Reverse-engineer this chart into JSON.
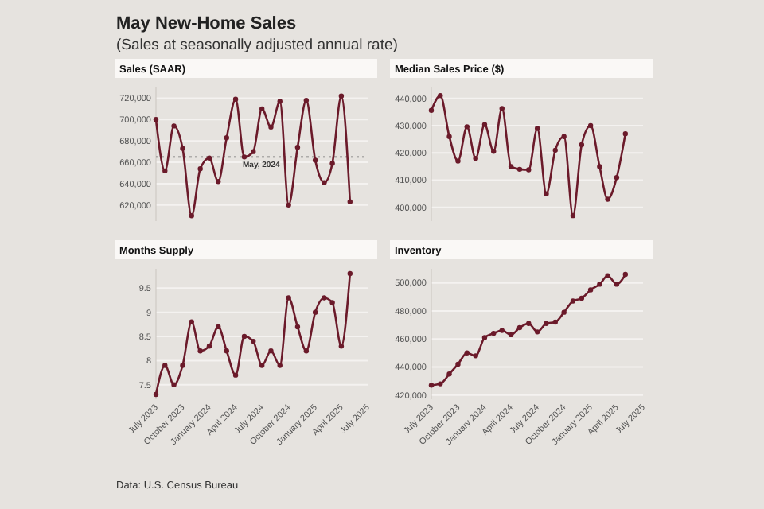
{
  "chart_data": [
    {
      "type": "other",
      "title": "May New-Home Sales",
      "subtitle": "(Sales at seasonally adjusted annual rate)",
      "annotations": [
        "Data: U.S. Census Bureau"
      ]
    },
    {
      "type": "line",
      "title": "Sales (SAAR)",
      "x": [
        "2023-07",
        "2023-08",
        "2023-09",
        "2023-10",
        "2023-11",
        "2023-12",
        "2024-01",
        "2024-02",
        "2024-03",
        "2024-04",
        "2024-05",
        "2024-06",
        "2024-07",
        "2024-08",
        "2024-09",
        "2024-10",
        "2024-11",
        "2024-12",
        "2025-01",
        "2025-02",
        "2025-03",
        "2025-04",
        "2025-05"
      ],
      "series": [
        {
          "color": "#6b1a2a",
          "values": [
            700000,
            652000,
            694000,
            673000,
            610000,
            654000,
            664000,
            642000,
            683000,
            719000,
            665000,
            670000,
            710000,
            693000,
            717000,
            620000,
            674000,
            718000,
            662000,
            641000,
            659000,
            722000,
            623000
          ]
        }
      ],
      "xlim": [
        "2023-07",
        "2025-07"
      ],
      "ylim": [
        605000,
        730000
      ],
      "yticks": [
        {
          "value": 620000,
          "label": "620,000"
        },
        {
          "value": 640000,
          "label": "640,000"
        },
        {
          "value": 660000,
          "label": "660,000"
        },
        {
          "value": 680000,
          "label": "680,000"
        },
        {
          "value": 700000,
          "label": "700,000"
        },
        {
          "value": 720000,
          "label": "720,000"
        }
      ],
      "ref_lines": [
        {
          "axis": "y",
          "value": 665000,
          "label": "May, 2024",
          "color": "#777777",
          "line_style": "dotted"
        }
      ],
      "grid": "y",
      "marker": "circle",
      "line_style": "solid",
      "tick_labels": "y"
    },
    {
      "type": "line",
      "title": "Median Sales Price ($)",
      "x": [
        "2023-07",
        "2023-08",
        "2023-09",
        "2023-10",
        "2023-11",
        "2023-12",
        "2024-01",
        "2024-02",
        "2024-03",
        "2024-04",
        "2024-05",
        "2024-06",
        "2024-07",
        "2024-08",
        "2024-09",
        "2024-10",
        "2024-11",
        "2024-12",
        "2025-01",
        "2025-02",
        "2025-03",
        "2025-04",
        "2025-05"
      ],
      "series": [
        {
          "color": "#6b1a2a",
          "values": [
            435600,
            441000,
            426000,
            417000,
            429600,
            418000,
            430400,
            420600,
            436300,
            415000,
            414000,
            413800,
            429000,
            405000,
            421000,
            426000,
            397000,
            423000,
            430000,
            415000,
            403000,
            411000,
            427000
          ]
        }
      ],
      "xlim": [
        "2023-07",
        "2025-07"
      ],
      "ylim": [
        395000,
        444000
      ],
      "yticks": [
        {
          "value": 400000,
          "label": "400,000"
        },
        {
          "value": 410000,
          "label": "410,000"
        },
        {
          "value": 420000,
          "label": "420,000"
        },
        {
          "value": 430000,
          "label": "430,000"
        },
        {
          "value": 440000,
          "label": "440,000"
        }
      ],
      "grid": "y",
      "marker": "circle",
      "line_style": "solid",
      "tick_labels": "y"
    },
    {
      "type": "line",
      "title": "Months Supply",
      "x": [
        "2023-07",
        "2023-08",
        "2023-09",
        "2023-10",
        "2023-11",
        "2023-12",
        "2024-01",
        "2024-02",
        "2024-03",
        "2024-04",
        "2024-05",
        "2024-06",
        "2024-07",
        "2024-08",
        "2024-09",
        "2024-10",
        "2024-11",
        "2024-12",
        "2025-01",
        "2025-02",
        "2025-03",
        "2025-04",
        "2025-05"
      ],
      "series": [
        {
          "color": "#6b1a2a",
          "values": [
            7.3,
            7.9,
            7.5,
            7.9,
            8.8,
            8.2,
            8.3,
            8.7,
            8.2,
            7.7,
            8.5,
            8.4,
            7.9,
            8.2,
            7.9,
            9.3,
            8.7,
            8.2,
            9.0,
            9.3,
            9.2,
            8.3,
            9.8
          ]
        }
      ],
      "xlim": [
        "2023-07",
        "2025-07"
      ],
      "ylim": [
        7.2,
        9.9
      ],
      "xticks": [
        {
          "value": "2023-07",
          "label": "July 2023"
        },
        {
          "value": "2023-10",
          "label": "October 2023"
        },
        {
          "value": "2024-01",
          "label": "January 2024"
        },
        {
          "value": "2024-04",
          "label": "April 2024"
        },
        {
          "value": "2024-07",
          "label": "July 2024"
        },
        {
          "value": "2024-10",
          "label": "October 2024"
        },
        {
          "value": "2025-01",
          "label": "January 2025"
        },
        {
          "value": "2025-04",
          "label": "April 2025"
        },
        {
          "value": "2025-07",
          "label": "July 2025"
        }
      ],
      "yticks": [
        7.5,
        8,
        8.5,
        9,
        9.5
      ],
      "grid": "y",
      "marker": "circle",
      "line_style": "solid"
    },
    {
      "type": "line",
      "title": "Inventory",
      "x": [
        "2023-07",
        "2023-08",
        "2023-09",
        "2023-10",
        "2023-11",
        "2023-12",
        "2024-01",
        "2024-02",
        "2024-03",
        "2024-04",
        "2024-05",
        "2024-06",
        "2024-07",
        "2024-08",
        "2024-09",
        "2024-10",
        "2024-11",
        "2024-12",
        "2025-01",
        "2025-02",
        "2025-03",
        "2025-04",
        "2025-05"
      ],
      "series": [
        {
          "color": "#6b1a2a",
          "values": [
            427000,
            428000,
            435000,
            442000,
            450000,
            448000,
            461000,
            464000,
            466000,
            463000,
            468000,
            471000,
            465000,
            471000,
            472000,
            479000,
            487000,
            489000,
            495000,
            499000,
            505000,
            499000,
            506000
          ]
        }
      ],
      "xlim": [
        "2023-07",
        "2025-07"
      ],
      "ylim": [
        417000,
        510000
      ],
      "xticks": [
        {
          "value": "2023-07",
          "label": "July 2023"
        },
        {
          "value": "2023-10",
          "label": "October 2023"
        },
        {
          "value": "2024-01",
          "label": "January 2024"
        },
        {
          "value": "2024-04",
          "label": "April 2024"
        },
        {
          "value": "2024-07",
          "label": "July 2024"
        },
        {
          "value": "2024-10",
          "label": "October 2024"
        },
        {
          "value": "2025-01",
          "label": "January 2025"
        },
        {
          "value": "2025-04",
          "label": "April 2025"
        },
        {
          "value": "2025-07",
          "label": "July 2025"
        }
      ],
      "yticks": [
        {
          "value": 420000,
          "label": "420,000"
        },
        {
          "value": 440000,
          "label": "440,000"
        },
        {
          "value": 460000,
          "label": "460,000"
        },
        {
          "value": 480000,
          "label": "480,000"
        },
        {
          "value": 500000,
          "label": "500,000"
        }
      ],
      "grid": "y",
      "marker": "circle",
      "line_style": "solid"
    }
  ]
}
